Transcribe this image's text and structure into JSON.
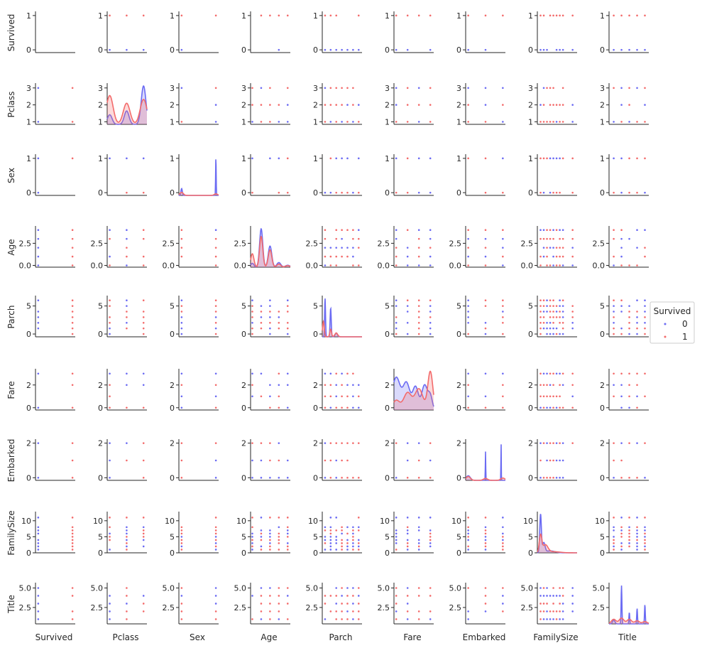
{
  "chart_data": {
    "type": "scatter",
    "kind": "pairplot",
    "variables": [
      "Survived",
      "Pclass",
      "Sex",
      "Age",
      "Parch",
      "Fare",
      "Embarked",
      "FamilySize",
      "Title"
    ],
    "hue": "Survived",
    "legend": {
      "title": "Survived",
      "placement": "right-center",
      "entries": [
        {
          "label": "0",
          "color": "#6b6bf3"
        },
        {
          "label": "1",
          "color": "#f36b6b"
        }
      ]
    },
    "ranges": {
      "Survived": [
        -0.08,
        1.08
      ],
      "Pclass": [
        0.85,
        3.2
      ],
      "Sex": [
        -0.08,
        1.08
      ],
      "Age": [
        -0.2,
        4.3
      ],
      "Parch": [
        -0.5,
        6.6
      ],
      "Fare": [
        -0.2,
        3.3
      ],
      "Embarked": [
        -0.15,
        2.15
      ],
      "FamilySize": [
        0,
        12.4
      ],
      "Title": [
        0.4,
        5.5
      ]
    },
    "ticks": {
      "Survived": [
        0,
        1
      ],
      "Pclass": [
        1,
        2,
        3
      ],
      "Sex": [
        0,
        1
      ],
      "Age": [
        0.0,
        2.5
      ],
      "Parch": [
        0,
        5
      ],
      "Fare": [
        0,
        2
      ],
      "Embarked": [
        0,
        2
      ],
      "FamilySize": [
        0,
        5,
        10
      ],
      "Title": [
        2.5,
        5.0
      ]
    },
    "tick_labels": {
      "Survived": [
        "0",
        "1"
      ],
      "Pclass": [
        "1",
        "2",
        "3"
      ],
      "Sex": [
        "0",
        "1"
      ],
      "Age": [
        "0.0",
        "2.5"
      ],
      "Parch": [
        "0",
        "5"
      ],
      "Fare": [
        "0",
        "2"
      ],
      "Embarked": [
        "0",
        "2"
      ],
      "FamilySize": [
        "0",
        "5",
        "10"
      ],
      "Title": [
        "2.5",
        "5.0"
      ]
    },
    "value_sets": {
      "Survived": [
        0,
        1
      ],
      "Pclass": [
        1,
        2,
        3
      ],
      "Sex": [
        0,
        1
      ],
      "Age": [
        0,
        1,
        2,
        3,
        4
      ],
      "Parch": [
        0,
        1,
        2,
        3,
        4,
        5,
        6
      ],
      "Fare": [
        0,
        1,
        2,
        3
      ],
      "Embarked": [
        0,
        1,
        2
      ],
      "FamilySize": [
        1,
        2,
        3,
        4,
        5,
        6,
        7,
        8,
        11
      ],
      "Title": [
        1,
        2,
        3,
        4,
        5
      ]
    },
    "diagonal_kde": {
      "Pclass": {
        "0": [
          {
            "x": 1,
            "h": 0.25,
            "w": 0.14
          },
          {
            "x": 2,
            "h": 0.35,
            "w": 0.14
          },
          {
            "x": 3,
            "h": 1.0,
            "w": 0.14
          }
        ],
        "1": [
          {
            "x": 1,
            "h": 0.75,
            "w": 0.2
          },
          {
            "x": 2,
            "h": 0.55,
            "w": 0.2
          },
          {
            "x": 3,
            "h": 0.65,
            "w": 0.2
          }
        ]
      },
      "Sex": {
        "0": [
          {
            "x": 0,
            "h": 0.18,
            "w": 0.02
          },
          {
            "x": 1,
            "h": 1.0,
            "w": 0.008
          }
        ],
        "1": [
          {
            "x": 0,
            "h": 0.08,
            "w": 0.05
          },
          {
            "x": 1,
            "h": 0.04,
            "w": 0.05
          }
        ]
      },
      "Age": {
        "0": [
          {
            "x": 0,
            "h": 0.1,
            "w": 0.18
          },
          {
            "x": 1,
            "h": 1.0,
            "w": 0.18
          },
          {
            "x": 2,
            "h": 0.55,
            "w": 0.2
          },
          {
            "x": 3,
            "h": 0.12,
            "w": 0.22
          },
          {
            "x": 4,
            "h": 0.05,
            "w": 0.25
          }
        ],
        "1": [
          {
            "x": 0,
            "h": 0.35,
            "w": 0.18
          },
          {
            "x": 1,
            "h": 0.8,
            "w": 0.18
          },
          {
            "x": 2,
            "h": 0.45,
            "w": 0.2
          },
          {
            "x": 3,
            "h": 0.08,
            "w": 0.22
          },
          {
            "x": 4,
            "h": 0.04,
            "w": 0.25
          }
        ]
      },
      "Parch": {
        "0": [
          {
            "x": 0,
            "h": 1.0,
            "w": 0.08
          },
          {
            "x": 1,
            "h": 0.75,
            "w": 0.1
          },
          {
            "x": 2,
            "h": 0.1,
            "w": 0.2
          }
        ],
        "1": [
          {
            "x": -0.3,
            "h": 0.4,
            "w": 0.15
          },
          {
            "x": 1,
            "h": 0.2,
            "w": 0.15
          },
          {
            "x": 2,
            "h": 0.1,
            "w": 0.25
          }
        ]
      },
      "Fare": {
        "0": [
          {
            "x": 0,
            "h": 0.85,
            "w": 0.35
          },
          {
            "x": 0.9,
            "h": 0.7,
            "w": 0.3
          },
          {
            "x": 1.7,
            "h": 0.6,
            "w": 0.25
          },
          {
            "x": 2.5,
            "h": 0.65,
            "w": 0.25
          },
          {
            "x": 3,
            "h": 0.35,
            "w": 0.18
          }
        ],
        "1": [
          {
            "x": 0,
            "h": 0.25,
            "w": 0.3
          },
          {
            "x": 1,
            "h": 0.45,
            "w": 0.35
          },
          {
            "x": 2,
            "h": 0.55,
            "w": 0.35
          },
          {
            "x": 3,
            "h": 1.0,
            "w": 0.22
          }
        ]
      },
      "Embarked": {
        "0": [
          {
            "x": 0,
            "h": 0.12,
            "w": 0.12
          },
          {
            "x": 1,
            "h": 0.75,
            "w": 0.012
          },
          {
            "x": 1.9,
            "h": 1.0,
            "w": 0.01
          }
        ],
        "1": [
          {
            "x": 0,
            "h": 0.1,
            "w": 0.12
          },
          {
            "x": 1,
            "h": 0.05,
            "w": 0.12
          },
          {
            "x": 2,
            "h": 0.06,
            "w": 0.12
          }
        ]
      },
      "FamilySize": {
        "0": [
          {
            "x": 1,
            "h": 1.0,
            "w": 0.25
          },
          {
            "x": 2,
            "h": 0.25,
            "w": 0.4
          },
          {
            "x": 4,
            "h": 0.05,
            "w": 1.5
          }
        ],
        "1": [
          {
            "x": 1,
            "h": 0.45,
            "w": 0.4
          },
          {
            "x": 2.5,
            "h": 0.2,
            "w": 0.8
          },
          {
            "x": 5,
            "h": 0.03,
            "w": 2
          }
        ]
      },
      "Title": {
        "0": [
          {
            "x": 1,
            "h": 0.1,
            "w": 0.15
          },
          {
            "x": 2,
            "h": 1.0,
            "w": 0.05
          },
          {
            "x": 3,
            "h": 0.3,
            "w": 0.05
          },
          {
            "x": 4,
            "h": 0.4,
            "w": 0.05
          },
          {
            "x": 5,
            "h": 0.5,
            "w": 0.05
          }
        ],
        "1": [
          {
            "x": 1,
            "h": 0.12,
            "w": 0.3
          },
          {
            "x": 2,
            "h": 0.15,
            "w": 0.3
          },
          {
            "x": 3,
            "h": 0.12,
            "w": 0.3
          },
          {
            "x": 4,
            "h": 0.08,
            "w": 0.3
          },
          {
            "x": 5,
            "h": 0.06,
            "w": 0.3
          }
        ]
      }
    },
    "xlabels": [
      "Survived",
      "Pclass",
      "Sex",
      "Age",
      "Parch",
      "Fare",
      "Embarked",
      "FamilySize",
      "Title"
    ],
    "ylabels": [
      "Survived",
      "Pclass",
      "Sex",
      "Age",
      "Parch",
      "Fare",
      "Embarked",
      "FamilySize",
      "Title"
    ],
    "grid": false,
    "colors": {
      "class_0": "#6b6bf3",
      "class_1": "#f36b6b",
      "axis": "#262626"
    }
  }
}
